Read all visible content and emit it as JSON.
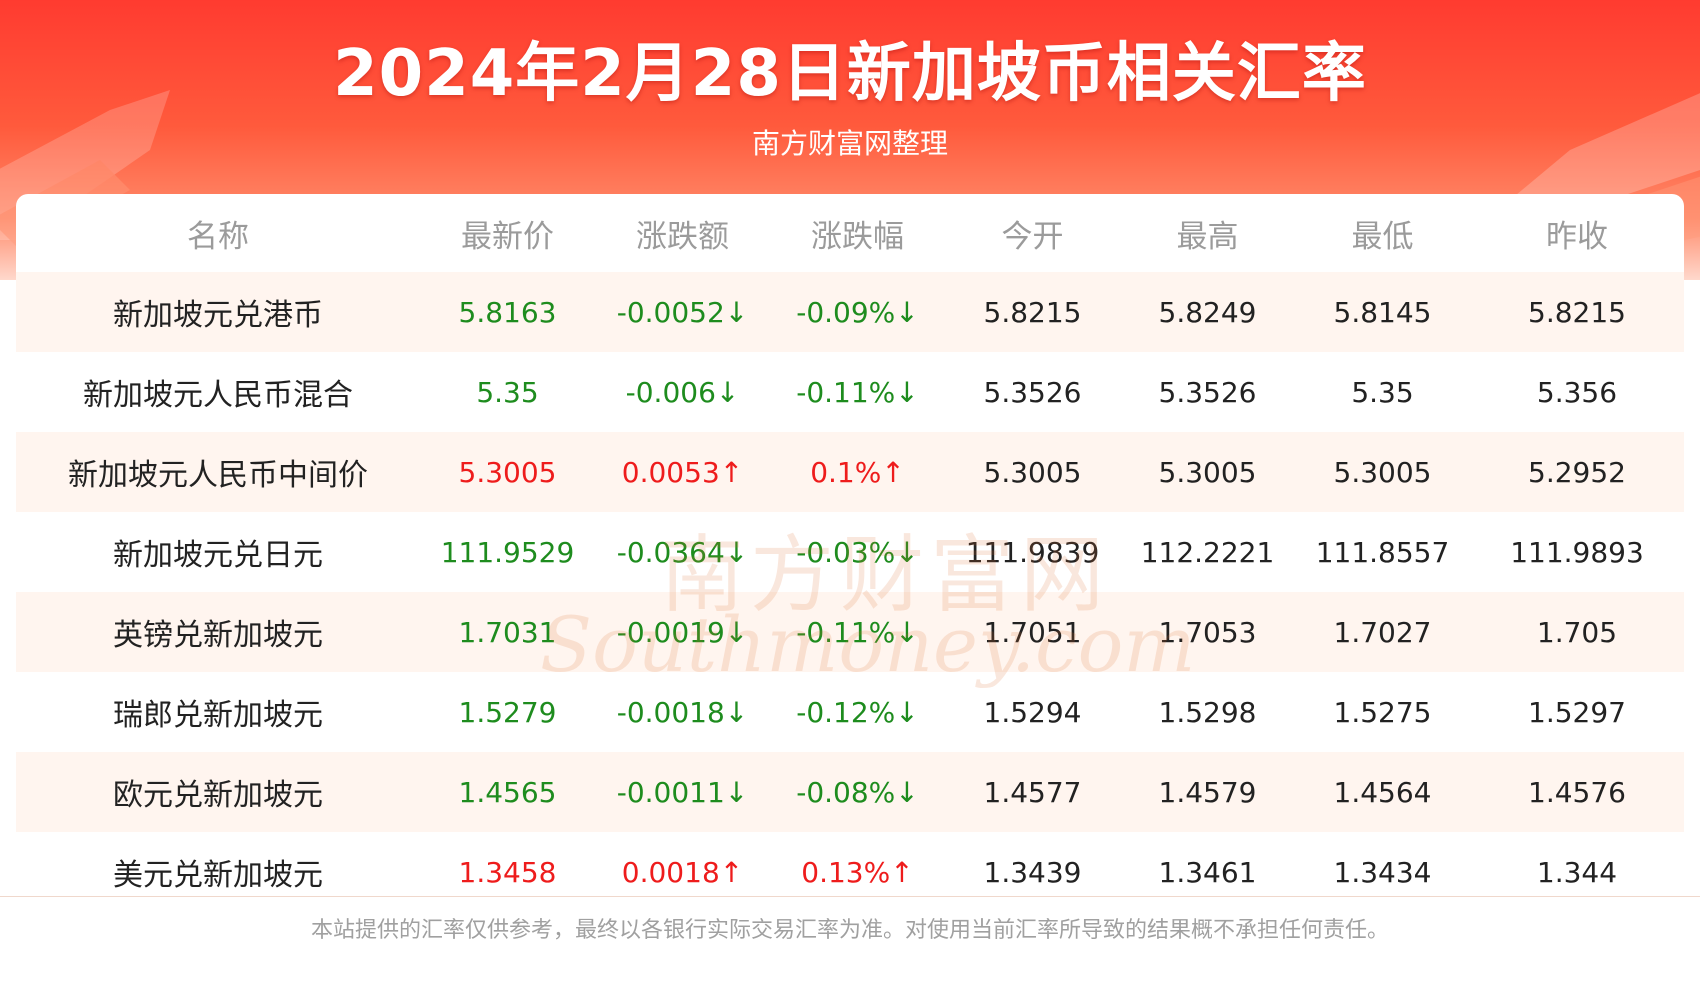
{
  "header": {
    "title": "2024年2月28日新加坡币相关汇率",
    "subtitle": "南方财富网整理"
  },
  "colors": {
    "up": "#ee1c1c",
    "down": "#1e8c1e",
    "header_red": "#ff3b30"
  },
  "table": {
    "columns": [
      "名称",
      "最新价",
      "涨跌额",
      "涨跌幅",
      "今开",
      "最高",
      "最低",
      "昨收"
    ],
    "rows": [
      {
        "name": "新加坡元兑港币",
        "latest": "5.8163",
        "change": "-0.0052↓",
        "pct": "-0.09%↓",
        "open": "5.8215",
        "high": "5.8249",
        "low": "5.8145",
        "prev": "5.8215",
        "dir": "down"
      },
      {
        "name": "新加坡元人民币混合",
        "latest": "5.35",
        "change": "-0.006↓",
        "pct": "-0.11%↓",
        "open": "5.3526",
        "high": "5.3526",
        "low": "5.35",
        "prev": "5.356",
        "dir": "down"
      },
      {
        "name": "新加坡元人民币中间价",
        "latest": "5.3005",
        "change": "0.0053↑",
        "pct": "0.1%↑",
        "open": "5.3005",
        "high": "5.3005",
        "low": "5.3005",
        "prev": "5.2952",
        "dir": "up"
      },
      {
        "name": "新加坡元兑日元",
        "latest": "111.9529",
        "change": "-0.0364↓",
        "pct": "-0.03%↓",
        "open": "111.9839",
        "high": "112.2221",
        "low": "111.8557",
        "prev": "111.9893",
        "dir": "down"
      },
      {
        "name": "英镑兑新加坡元",
        "latest": "1.7031",
        "change": "-0.0019↓",
        "pct": "-0.11%↓",
        "open": "1.7051",
        "high": "1.7053",
        "low": "1.7027",
        "prev": "1.705",
        "dir": "down"
      },
      {
        "name": "瑞郎兑新加坡元",
        "latest": "1.5279",
        "change": "-0.0018↓",
        "pct": "-0.12%↓",
        "open": "1.5294",
        "high": "1.5298",
        "low": "1.5275",
        "prev": "1.5297",
        "dir": "down"
      },
      {
        "name": "欧元兑新加坡元",
        "latest": "1.4565",
        "change": "-0.0011↓",
        "pct": "-0.08%↓",
        "open": "1.4577",
        "high": "1.4579",
        "low": "1.4564",
        "prev": "1.4576",
        "dir": "down"
      },
      {
        "name": "美元兑新加坡元",
        "latest": "1.3458",
        "change": "0.0018↑",
        "pct": "0.13%↑",
        "open": "1.3439",
        "high": "1.3461",
        "low": "1.3434",
        "prev": "1.344",
        "dir": "up"
      }
    ]
  },
  "watermark": {
    "cn": "南方财富网",
    "en": "Southmoney.com"
  },
  "footer": {
    "disclaimer": "本站提供的汇率仅供参考，最终以各银行实际交易汇率为准。对使用当前汇率所导致的结果概不承担任何责任。"
  }
}
